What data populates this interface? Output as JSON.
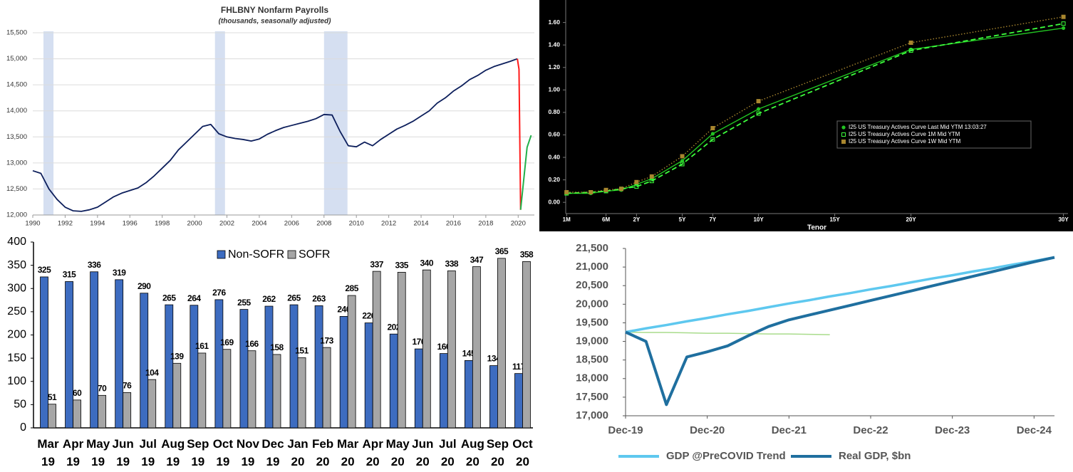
{
  "chart_data": [
    {
      "type": "line",
      "title": "FHLBNY Nonfarm Payrolls",
      "subtitle": "(thousands, seasonally adjusted)",
      "background": "#ffffff",
      "grid": true,
      "x": [
        1990,
        1990.5,
        1991,
        1991.5,
        1992,
        1992.5,
        1993,
        1993.5,
        1994,
        1994.5,
        1995,
        1995.5,
        1996,
        1996.5,
        1997,
        1997.5,
        1998,
        1998.5,
        1999,
        1999.5,
        2000,
        2000.5,
        2001,
        2001.5,
        2002,
        2002.5,
        2003,
        2003.5,
        2004,
        2004.5,
        2005,
        2005.5,
        2006,
        2006.5,
        2007,
        2007.5,
        2008,
        2008.5,
        2009,
        2009.5,
        2010,
        2010.5,
        2011,
        2011.5,
        2012,
        2012.5,
        2013,
        2013.5,
        2014,
        2014.5,
        2015,
        2015.5,
        2016,
        2016.5,
        2017,
        2017.5,
        2018,
        2018.5,
        2019,
        2019.5,
        2019.95,
        2020.05,
        2020.15,
        2020.35,
        2020.55,
        2020.8
      ],
      "series": [
        {
          "color": "#0d1f5c",
          "values": [
            12850,
            12800,
            12500,
            12300,
            12150,
            12080,
            12070,
            12100,
            12150,
            12250,
            12350,
            12420,
            12470,
            12520,
            12620,
            12750,
            12900,
            13050,
            13250,
            13400,
            13550,
            13700,
            13740,
            13560,
            13500,
            13470,
            13450,
            13420,
            13460,
            13550,
            13620,
            13680,
            13720,
            13760,
            13800,
            13850,
            13930,
            13920,
            13600,
            13330,
            13310,
            13400,
            13330,
            13450,
            13550,
            13650,
            13720,
            13800,
            13900,
            14000,
            14150,
            14250,
            14380,
            14480,
            14600,
            14680,
            14780,
            14850,
            14900,
            14950,
            15000,
            null,
            null,
            null,
            null,
            null
          ]
        },
        {
          "color": "#ff1a1a",
          "values": [
            null,
            null,
            null,
            null,
            null,
            null,
            null,
            null,
            null,
            null,
            null,
            null,
            null,
            null,
            null,
            null,
            null,
            null,
            null,
            null,
            null,
            null,
            null,
            null,
            null,
            null,
            null,
            null,
            null,
            null,
            null,
            null,
            null,
            null,
            null,
            null,
            null,
            null,
            null,
            null,
            null,
            null,
            null,
            null,
            null,
            null,
            null,
            null,
            null,
            null,
            null,
            null,
            null,
            null,
            null,
            null,
            null,
            null,
            null,
            null,
            15000,
            14800,
            12100,
            null,
            null,
            null
          ]
        },
        {
          "color": "#22b04a",
          "values": [
            null,
            null,
            null,
            null,
            null,
            null,
            null,
            null,
            null,
            null,
            null,
            null,
            null,
            null,
            null,
            null,
            null,
            null,
            null,
            null,
            null,
            null,
            null,
            null,
            null,
            null,
            null,
            null,
            null,
            null,
            null,
            null,
            null,
            null,
            null,
            null,
            null,
            null,
            null,
            null,
            null,
            null,
            null,
            null,
            null,
            null,
            null,
            null,
            null,
            null,
            null,
            null,
            null,
            null,
            null,
            null,
            null,
            null,
            null,
            null,
            null,
            null,
            12100,
            12700,
            13300,
            13530
          ]
        }
      ],
      "recessions": [
        [
          1990.66,
          1991.28
        ],
        [
          2001.26,
          2001.88
        ],
        [
          2008.0,
          2009.45
        ]
      ],
      "recession_color": "#d5dff1",
      "xlim": [
        1990,
        2021
      ],
      "xticks": [
        1990,
        1992,
        1994,
        1996,
        1998,
        2000,
        2002,
        2004,
        2006,
        2008,
        2010,
        2012,
        2014,
        2016,
        2018,
        2020
      ],
      "ylim": [
        12000,
        15500
      ],
      "yticks": [
        {
          "value": 12000,
          "label": "12,000"
        },
        {
          "value": 12500,
          "label": "12,500"
        },
        {
          "value": 13000,
          "label": "13,000"
        },
        {
          "value": 13500,
          "label": "13,500"
        },
        {
          "value": 14000,
          "label": "14,000"
        },
        {
          "value": 14500,
          "label": "14,500"
        },
        {
          "value": 15000,
          "label": "15,000"
        },
        {
          "value": 15500,
          "label": "15,500"
        }
      ]
    },
    {
      "type": "line",
      "background": "#000000",
      "grid": false,
      "x_label": "Tenor",
      "legend": "right",
      "x": [
        0.0833,
        0.25,
        0.5,
        1,
        2,
        3,
        5,
        7,
        10,
        20,
        30
      ],
      "series": [
        {
          "name": "I25 US Treasury Actives Curve Last Mid YTM 13:03:27",
          "color": "#22c322",
          "marker": "circle",
          "dash": "solid",
          "values": [
            0.08,
            0.08,
            0.1,
            0.11,
            0.16,
            0.21,
            0.37,
            0.61,
            0.83,
            1.36,
            1.55
          ]
        },
        {
          "name": "I25 US Treasury Actives Curve 1M Mid YTM",
          "color": "#3dff3d",
          "marker": "open-square",
          "dash": "dashed",
          "values": [
            0.08,
            0.09,
            0.1,
            0.12,
            0.14,
            0.19,
            0.34,
            0.56,
            0.79,
            1.35,
            1.59
          ]
        },
        {
          "name": "I25 US Treasury Actives Curve 1W Mid YTM",
          "color": "#a8862e",
          "marker": "square",
          "dash": "dotted",
          "values": [
            0.09,
            0.09,
            0.11,
            0.12,
            0.18,
            0.23,
            0.41,
            0.66,
            0.9,
            1.42,
            1.65
          ]
        }
      ],
      "xlim": [
        0.08,
        30.3
      ],
      "xticks": [
        {
          "value": 0.0833,
          "label": "1M"
        },
        {
          "value": 0.5,
          "label": "6M"
        },
        {
          "value": 2,
          "label": "2Y"
        },
        {
          "value": 5,
          "label": "5Y"
        },
        {
          "value": 7,
          "label": "7Y"
        },
        {
          "value": 10,
          "label": "10Y"
        },
        {
          "value": 15,
          "label": "15Y"
        },
        {
          "value": 20,
          "label": "20Y"
        },
        {
          "value": 30,
          "label": "30Y"
        }
      ],
      "ylim": [
        -0.1,
        1.8
      ],
      "yticks": [
        {
          "value": 0,
          "label": "0.00"
        },
        {
          "value": 0.2,
          "label": "0.20"
        },
        {
          "value": 0.4,
          "label": "0.40"
        },
        {
          "value": 0.6,
          "label": "0.60"
        },
        {
          "value": 0.8,
          "label": "0.80"
        },
        {
          "value": 1,
          "label": "1.00"
        },
        {
          "value": 1.2,
          "label": "1.20"
        },
        {
          "value": 1.4,
          "label": "1.40"
        },
        {
          "value": 1.6,
          "label": "1.60"
        }
      ]
    },
    {
      "type": "bar",
      "background": "#ffffff",
      "grid": false,
      "data_labels": true,
      "legend": "top",
      "categories": [
        "Mar 19",
        "Apr 19",
        "May 19",
        "Jun 19",
        "Jul 19",
        "Aug 19",
        "Sep 19",
        "Oct 19",
        "Nov 19",
        "Dec 19",
        "Jan 20",
        "Feb 20",
        "Mar 20",
        "Apr 20",
        "May 20",
        "Jun 20",
        "Jul 20",
        "Aug 20",
        "Sep 20",
        "Oct 20"
      ],
      "series": [
        {
          "name": "Non-SOFR",
          "color": "#3d6cc0",
          "values": [
            325,
            315,
            336,
            319,
            290,
            265,
            264,
            276,
            255,
            262,
            265,
            263,
            240,
            226,
            202,
            170,
            160,
            145,
            134,
            117
          ]
        },
        {
          "name": "SOFR",
          "color": "#a6a6a6",
          "values": [
            51,
            60,
            70,
            76,
            104,
            139,
            161,
            169,
            166,
            158,
            151,
            173,
            285,
            337,
            335,
            340,
            338,
            347,
            365,
            358
          ]
        }
      ],
      "ylim": [
        0,
        400
      ],
      "yticks": [
        0,
        50,
        100,
        150,
        200,
        250,
        300,
        350,
        400
      ]
    },
    {
      "type": "line",
      "background": "#ffffff",
      "grid": false,
      "legend": "bottom",
      "x": [
        "2019-12",
        "2020-03",
        "2020-06",
        "2020-09",
        "2020-12",
        "2021-03",
        "2021-06",
        "2021-09",
        "2021-12",
        "2022-03",
        "2022-06",
        "2022-09",
        "2022-12",
        "2023-03",
        "2023-06",
        "2023-09",
        "2023-12",
        "2024-03",
        "2024-06",
        "2024-09",
        "2024-12",
        "2025-03"
      ],
      "series": [
        {
          "color": "#a9dc8c",
          "values": [
            19250,
            19240,
            19240,
            19230,
            19220,
            19220,
            19210,
            19200,
            19200,
            19190,
            19180,
            null,
            null,
            null,
            null,
            null,
            null,
            null,
            null,
            null,
            null,
            null
          ]
        },
        {
          "name": "GDP @PreCOVID Trend",
          "color": "#5ec8ef",
          "values": [
            19250,
            19350,
            19440,
            19540,
            19630,
            19730,
            19820,
            19920,
            20020,
            20110,
            20210,
            20300,
            20400,
            20490,
            20590,
            20690,
            20780,
            20880,
            20970,
            21070,
            21160,
            21260
          ]
        },
        {
          "name": "Real GDP, $bn",
          "color": "#1f6f9f",
          "values": [
            19250,
            19000,
            17300,
            18580,
            18720,
            18880,
            19150,
            19400,
            19580,
            19710,
            19840,
            19970,
            20100,
            20230,
            20360,
            20490,
            20620,
            20750,
            20880,
            21010,
            21140,
            21260
          ]
        }
      ],
      "xlim": [
        "2019-12",
        "2025-03"
      ],
      "xticks": [
        {
          "value": "2019-12",
          "label": "Dec-19"
        },
        {
          "value": "2020-12",
          "label": "Dec-20"
        },
        {
          "value": "2021-12",
          "label": "Dec-21"
        },
        {
          "value": "2022-12",
          "label": "Dec-22"
        },
        {
          "value": "2023-12",
          "label": "Dec-23"
        },
        {
          "value": "2024-12",
          "label": "Dec-24"
        }
      ],
      "ylim": [
        17000,
        21500
      ],
      "yticks": [
        {
          "value": 17000,
          "label": "17,000"
        },
        {
          "value": 17500,
          "label": "17,500"
        },
        {
          "value": 18000,
          "label": "18,000"
        },
        {
          "value": 18500,
          "label": "18,500"
        },
        {
          "value": 19000,
          "label": "19,000"
        },
        {
          "value": 19500,
          "label": "19,500"
        },
        {
          "value": 20000,
          "label": "20,000"
        },
        {
          "value": 20500,
          "label": "20,500"
        },
        {
          "value": 21000,
          "label": "21,000"
        },
        {
          "value": 21500,
          "label": "21,500"
        }
      ]
    }
  ]
}
